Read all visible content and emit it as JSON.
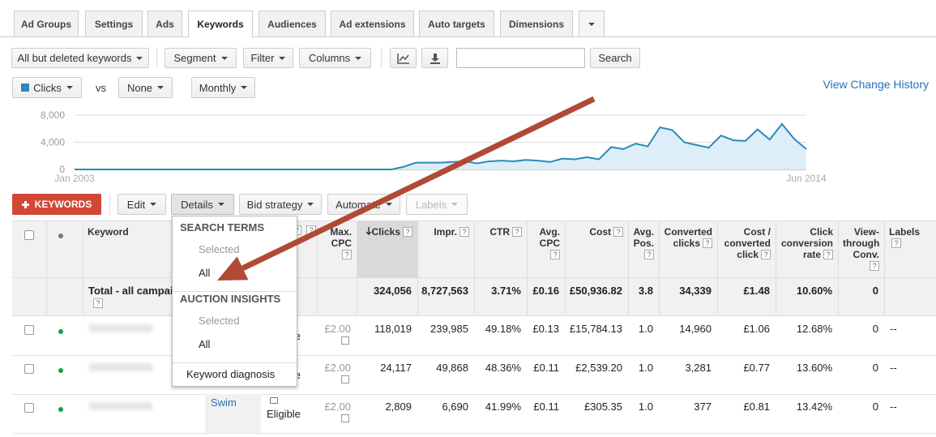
{
  "tabs": [
    "Ad Groups",
    "Settings",
    "Ads",
    "Keywords",
    "Audiences",
    "Ad extensions",
    "Auto targets",
    "Dimensions"
  ],
  "toolbar": {
    "view_filter": "All but deleted keywords",
    "buttons": [
      "Segment",
      "Filter",
      "Columns"
    ],
    "search_button": "Search"
  },
  "chart_controls": {
    "vs": "vs",
    "compare": "None",
    "period": "Monthly"
  },
  "view_change_history": "View Change History",
  "chart_data": {
    "type": "line",
    "series": [
      {
        "name": "Clicks",
        "color": "#2a8ab9",
        "values": [
          0,
          0,
          0,
          0,
          0,
          0,
          0,
          0,
          0,
          0,
          0,
          0,
          0,
          0,
          0,
          0,
          0,
          0,
          0,
          0,
          0,
          0,
          0,
          0,
          0,
          0,
          0,
          400,
          1000,
          1000,
          1000,
          1100,
          1200,
          900,
          1200,
          1300,
          1200,
          1400,
          1300,
          1100,
          1600,
          1500,
          1800,
          1500,
          3300,
          3000,
          3800,
          3400,
          6200,
          5800,
          4000,
          3600,
          3200,
          5000,
          4300,
          4200,
          5900,
          4400,
          6700,
          4500,
          3000
        ]
      }
    ],
    "x_labels": [
      "Jan 2003",
      "Jun 2014"
    ],
    "ylim": [
      0,
      8000
    ],
    "yticks": [
      0,
      {
        "value": 4000,
        "label": "4,000"
      },
      {
        "value": 8000,
        "label": "8,000"
      }
    ],
    "grid": true
  },
  "actions": {
    "add": "KEYWORDS",
    "buttons": [
      "Edit",
      "Details",
      "Bid strategy",
      "Automate",
      "Labels"
    ]
  },
  "details_menu": {
    "sections": [
      {
        "title": "SEARCH TERMS",
        "items": [
          "Selected",
          "All"
        ]
      },
      {
        "title": "AUCTION INSIGHTS",
        "items": [
          "Selected",
          "All"
        ]
      }
    ],
    "footer": "Keyword diagnosis"
  },
  "table": {
    "help_icon": "?",
    "headers": [
      "Keyword",
      "Max. CPC",
      "Clicks",
      "Impr.",
      "CTR",
      "Avg. CPC",
      "Cost",
      "Avg. Pos.",
      "Converted clicks",
      "Cost / converted click",
      "Click conversion rate",
      "View-through Conv.",
      "Labels"
    ],
    "total": {
      "label": "Total - all campaigns",
      "metrics": [
        "324,056",
        "8,727,563",
        "3.71%",
        "£0.16",
        "£50,936.82",
        "3.8",
        "34,339",
        "£1.48",
        "10.60%",
        "0"
      ]
    },
    "rows": [
      {
        "status": "Eligible",
        "max_cpc": "£2.00",
        "metrics": [
          "118,019",
          "239,985",
          "49.18%",
          "£0.13",
          "£15,784.13",
          "1.0",
          "14,960",
          "£1.06",
          "12.68%",
          "0"
        ],
        "labels": "--"
      },
      {
        "status": "Eligible",
        "max_cpc": "£2.00",
        "metrics": [
          "24,117",
          "49,868",
          "48.36%",
          "£0.11",
          "£2,539.20",
          "1.0",
          "3,281",
          "£0.77",
          "13.60%",
          "0"
        ],
        "labels": "--"
      },
      {
        "ad_group": "Swim",
        "status": "Eligible",
        "max_cpc": "£2.00",
        "metrics": [
          "2,809",
          "6,690",
          "41.99%",
          "£0.11",
          "£305.35",
          "1.0",
          "377",
          "£0.81",
          "13.42%",
          "0"
        ],
        "labels": "--"
      }
    ]
  }
}
